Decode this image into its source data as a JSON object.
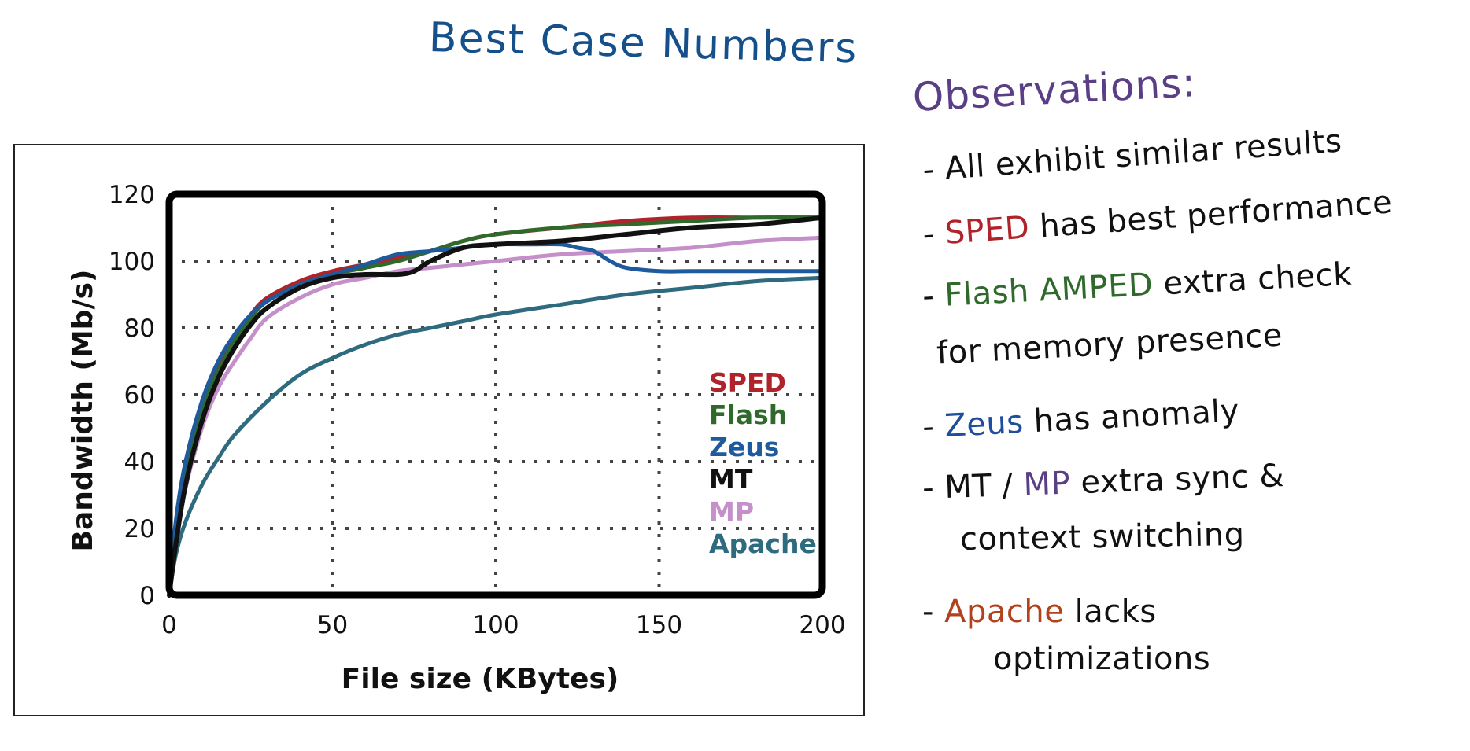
{
  "page_title": "Best Case Numbers",
  "colors": {
    "title": "#16508a",
    "heading": "#5b3f86",
    "SPED": "#b0232a",
    "Flash": "#2f6a2c",
    "Zeus": "#1f5a9c",
    "MT": "#111111",
    "MP": "#c58fc9",
    "Apache": "#2e6b7e",
    "Apache_note": "#b1421b"
  },
  "observations": {
    "heading": "Observations:",
    "line1": "- All exhibit similar results",
    "line2_dash": "-",
    "line2_hl": "SPED",
    "line2_rest": "has best performance",
    "line3_dash": "-",
    "line3_hl": "Flash AMPED",
    "line3_rest": "extra check",
    "line4": "for memory presence",
    "line5_dash": "-",
    "line5_hl": "Zeus",
    "line5_rest": "has anomaly",
    "line6_pre": "- MT /",
    "line6_hl": "MP",
    "line6_rest": "extra sync &",
    "line7": "context switching",
    "line8_dash": "-",
    "line8_hl": "Apache",
    "line8_rest": "lacks",
    "line9": "optimizations"
  },
  "chart_data": {
    "type": "line",
    "title": "",
    "xlabel": "File size (KBytes)",
    "ylabel": "Bandwidth (Mb/s)",
    "xlim": [
      0,
      200
    ],
    "ylim": [
      0,
      120
    ],
    "xticks": [
      0,
      50,
      100,
      150,
      200
    ],
    "yticks": [
      0,
      20,
      40,
      60,
      80,
      100,
      120
    ],
    "grid": true,
    "grid_style": "dotted",
    "legend_position": "lower-right",
    "series": [
      {
        "name": "SPED",
        "color": "#b0232a",
        "x": [
          0,
          2,
          5,
          10,
          15,
          20,
          25,
          30,
          40,
          50,
          60,
          70,
          80,
          90,
          100,
          120,
          140,
          160,
          180,
          200
        ],
        "y": [
          0,
          18,
          36,
          56,
          68,
          77,
          84,
          89,
          94,
          97,
          99,
          101,
          103,
          106,
          108,
          110,
          112,
          113,
          113,
          113
        ]
      },
      {
        "name": "Flash",
        "color": "#2f6a2c",
        "x": [
          0,
          2,
          5,
          10,
          15,
          20,
          25,
          30,
          40,
          50,
          60,
          70,
          80,
          90,
          100,
          120,
          140,
          160,
          180,
          200
        ],
        "y": [
          0,
          18,
          35,
          55,
          67,
          76,
          83,
          88,
          93,
          96,
          98,
          100,
          103,
          106,
          108,
          110,
          111,
          112,
          113,
          113
        ]
      },
      {
        "name": "Zeus",
        "color": "#1f5a9c",
        "x": [
          0,
          2,
          5,
          10,
          15,
          20,
          25,
          30,
          40,
          50,
          60,
          70,
          80,
          90,
          100,
          110,
          120,
          125,
          130,
          135,
          140,
          150,
          160,
          180,
          200
        ],
        "y": [
          0,
          22,
          40,
          58,
          70,
          78,
          84,
          88,
          93,
          96,
          99,
          102,
          103,
          104,
          105,
          105,
          105,
          104,
          103,
          100,
          98,
          97,
          97,
          97,
          97
        ]
      },
      {
        "name": "MT",
        "color": "#111111",
        "x": [
          0,
          2,
          5,
          10,
          15,
          20,
          25,
          30,
          40,
          50,
          60,
          70,
          75,
          80,
          90,
          100,
          120,
          140,
          160,
          180,
          200
        ],
        "y": [
          0,
          15,
          33,
          52,
          65,
          74,
          81,
          86,
          92,
          95,
          96,
          96,
          97,
          100,
          104,
          105,
          106,
          108,
          110,
          111,
          113
        ]
      },
      {
        "name": "MP",
        "color": "#c58fc9",
        "x": [
          0,
          2,
          5,
          10,
          15,
          20,
          25,
          30,
          40,
          50,
          60,
          70,
          80,
          100,
          120,
          140,
          160,
          180,
          200
        ],
        "y": [
          0,
          15,
          32,
          50,
          62,
          70,
          77,
          83,
          89,
          93,
          95,
          97,
          98,
          100,
          102,
          103,
          104,
          106,
          107
        ]
      },
      {
        "name": "Apache",
        "color": "#2e6b7e",
        "x": [
          0,
          2,
          5,
          10,
          15,
          20,
          30,
          40,
          50,
          60,
          70,
          80,
          90,
          100,
          120,
          140,
          160,
          180,
          200
        ],
        "y": [
          0,
          12,
          22,
          33,
          41,
          48,
          58,
          66,
          71,
          75,
          78,
          80,
          82,
          84,
          87,
          90,
          92,
          94,
          95
        ]
      }
    ]
  }
}
